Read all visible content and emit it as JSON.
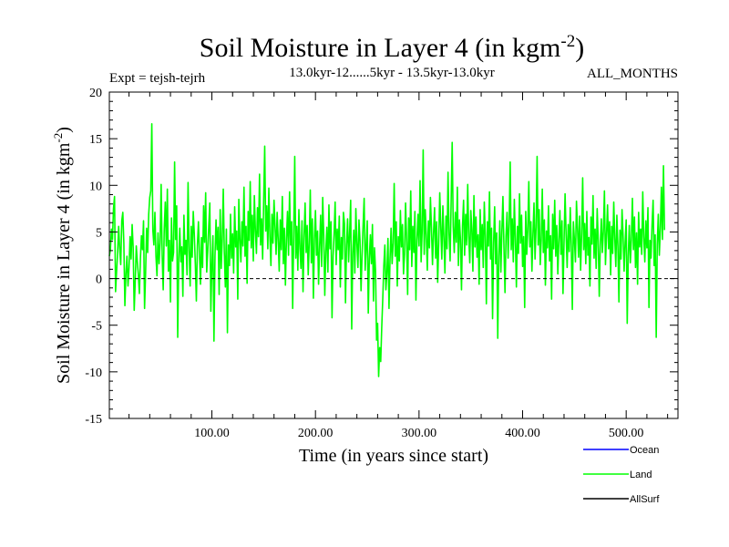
{
  "chart_data": {
    "type": "line",
    "title": "Soil Moisture in Layer 4 (in kgm",
    "title_sup": "-2",
    "title_close": ")",
    "subtitle_left": "Expt = tejsh-tejrh",
    "subtitle_center": "13.0kyr-12......5kyr - 13.5kyr-13.0kyr",
    "subtitle_right": "ALL_MONTHS",
    "xlabel": "Time (in years since start)",
    "ylabel": "Soil Moisture in Layer 4 (in kgm",
    "ylabel_sup": "-2",
    "ylabel_close": ")",
    "xlim": [
      1,
      550
    ],
    "ylim": [
      -15,
      20
    ],
    "x_ticks": [
      100,
      200,
      300,
      400,
      500
    ],
    "x_tick_labels": [
      "100.00",
      "200.00",
      "300.00",
      "400.00",
      "500.00"
    ],
    "y_ticks": [
      -15,
      -10,
      -5,
      0,
      5,
      10,
      15,
      20
    ],
    "y_tick_labels": [
      "-15",
      "-10",
      "-5",
      "0",
      "5",
      "10",
      "15",
      "20"
    ],
    "zero_line": true,
    "legend": [
      {
        "name": "Ocean",
        "color": "#0000ff"
      },
      {
        "name": "Land",
        "color": "#00ff00"
      },
      {
        "name": "AllSurf",
        "color": "#000000"
      }
    ],
    "legend_position": "below-right",
    "series": [
      {
        "name": "Land",
        "color": "#00ff00",
        "x_start": 1,
        "x_step": 1,
        "values": [
          2.4,
          3.1,
          5.3,
          4.2,
          7.5,
          8.8,
          -1.4,
          0.8,
          2.8,
          5.6,
          3.2,
          1.5,
          6.2,
          7.1,
          3.8,
          -2.9,
          0.5,
          2.4,
          -0.8,
          1.2,
          4.5,
          2.1,
          5.8,
          3.3,
          -3.4,
          -0.2,
          3.5,
          1.8,
          0.4,
          -1.6,
          2.2,
          4.6,
          3.1,
          6.2,
          -3.2,
          0.6,
          5.4,
          2.8,
          6.9,
          8.7,
          9.4,
          16.6,
          5.2,
          3.6,
          7.1,
          2.4,
          0.3,
          4.9,
          1.6,
          3.8,
          10.1,
          2.5,
          -1.2,
          5.3,
          8.2,
          3.5,
          9.6,
          0.8,
          4.1,
          -2.5,
          6.5,
          1.9,
          2.8,
          12.5,
          4.2,
          7.8,
          -6.3,
          2.1,
          5.4,
          1.8,
          3.4,
          -1.9,
          6.8,
          2.6,
          4.1,
          0.4,
          10.3,
          3.2,
          -0.8,
          5.6,
          2.3,
          7.2,
          4.8,
          1.6,
          -2.4,
          3.5,
          6.1,
          2.7,
          -0.6,
          4.4,
          1.2,
          7.8,
          3.9,
          9.2,
          0.7,
          2.9,
          5.7,
          8.1,
          -3.5,
          1.5,
          4.6,
          -6.7,
          2.4,
          6.3,
          3.1,
          5.5,
          -1.7,
          7.4,
          1.1,
          4.2,
          9.6,
          2.8,
          -0.9,
          5.3,
          -5.8,
          3.6,
          1.4,
          6.9,
          2.2,
          4.8,
          0.6,
          7.7,
          3.4,
          5.1,
          -2.2,
          8.5,
          4.3,
          1.8,
          6.1,
          3.5,
          9.8,
          2.4,
          5.6,
          -0.5,
          7.2,
          4.1,
          10.4,
          3.3,
          6.8,
          1.9,
          8.9,
          5.2,
          2.7,
          7.6,
          4.5,
          11.2,
          3.6,
          6.4,
          2.1,
          8.3,
          14.2,
          5.1,
          7.8,
          3.2,
          9.7,
          4.6,
          1.4,
          6.9,
          3.8,
          8.4,
          5.5,
          2.6,
          7.1,
          4.2,
          0.8,
          6.3,
          3.1,
          8.8,
          1.6,
          5.4,
          -0.7,
          4.3,
          7.2,
          2.5,
          9.3,
          3.6,
          6.1,
          -3.2,
          4.8,
          13.1,
          2.2,
          5.6,
          0.9,
          7.4,
          3.3,
          1.1,
          6.2,
          -1.4,
          4.5,
          8.1,
          2.8,
          5.7,
          0.4,
          3.9,
          9.5,
          1.7,
          6.4,
          -2.1,
          4.2,
          7.3,
          2.5,
          5.1,
          -0.6,
          3.4,
          6.8,
          1.3,
          8.7,
          4.6,
          -1.8,
          2.9,
          5.5,
          0.7,
          7.9,
          3.2,
          6.1,
          -4.2,
          2.4,
          4.8,
          8.2,
          1.5,
          5.3,
          3.1,
          6.7,
          -0.9,
          4.4,
          2.1,
          7.1,
          5.9,
          -2.6,
          3.6,
          6.4,
          1.8,
          4.9,
          8.4,
          -5.4,
          2.7,
          5.2,
          0.6,
          7.5,
          3.8,
          1.2,
          6.3,
          4.1,
          -1.3,
          2.5,
          5.7,
          8.6,
          0.9,
          3.4,
          6.2,
          -3.7,
          2.1,
          4.7,
          1.6,
          5.8,
          -2.4,
          3.3,
          0.8,
          -6.6,
          -4.8,
          -10.5,
          -7.4,
          -8.9,
          -5.2,
          -2.1,
          1.4,
          3.6,
          -1.2,
          0.6,
          4.3,
          -3.2,
          2.1,
          5.4,
          1.6,
          3.8,
          10.2,
          2.4,
          6.1,
          -0.8,
          4.5,
          1.9,
          7.3,
          3.4,
          5.8,
          0.5,
          2.6,
          8.1,
          4.2,
          -1.7,
          6.5,
          3.1,
          9.4,
          1.3,
          5.6,
          2.8,
          7.2,
          -2.3,
          4.1,
          6.9,
          3.5,
          10.5,
          1.8,
          5.1,
          13.8,
          2.6,
          7.4,
          4.7,
          0.9,
          6.2,
          3.3,
          8.7,
          5.4,
          1.5,
          4.9,
          7.6,
          2.2,
          6.1,
          -0.4,
          3.8,
          9.2,
          5.5,
          2.1,
          7.8,
          4.4,
          0.6,
          6.7,
          3.2,
          11.4,
          4.8,
          1.9,
          8.3,
          14.6,
          5.6,
          2.8,
          7.1,
          3.9,
          9.8,
          1.4,
          6.3,
          4.2,
          -1.2,
          5.7,
          8.4,
          2.5,
          6.9,
          3.6,
          10.1,
          4.5,
          1.7,
          7.3,
          5.2,
          0.8,
          8.9,
          3.4,
          6.6,
          2.3,
          4.7,
          -0.6,
          7.4,
          3.1,
          5.8,
          1.2,
          8.2,
          4.6,
          -2.7,
          6.1,
          3.5,
          9.3,
          2.1,
          5.4,
          -4.3,
          3.8,
          7.7,
          1.6,
          4.9,
          -6.4,
          2.4,
          6.2,
          0.7,
          5.1,
          8.8,
          3.3,
          -1.5,
          4.6,
          7.1,
          2.2,
          5.9,
          12.5,
          3.1,
          6.4,
          1.8,
          8.5,
          4.3,
          -0.9,
          5.6,
          2.7,
          9.1,
          3.8,
          6.8,
          1.3,
          4.5,
          -3.1,
          7.2,
          2.6,
          5.3,
          10.4,
          3.4,
          6.1,
          0.8,
          4.8,
          8.1,
          2.1,
          5.5,
          13.1,
          3.6,
          7.4,
          1.5,
          4.2,
          9.6,
          2.8,
          6.3,
          -0.7,
          5.1,
          3.3,
          7.8,
          1.9,
          4.6,
          -2.2,
          6.9,
          3.2,
          8.4,
          2.4,
          5.7,
          0.5,
          4.1,
          7.3,
          2.6,
          6.2,
          -1.6,
          3.9,
          9.1,
          4.7,
          1.2,
          5.8,
          2.9,
          7.6,
          3.5,
          -3.3,
          6.1,
          4.2,
          1.8,
          8.3,
          5.4,
          2.3,
          6.7,
          0.9,
          4.8,
          10.8,
          3.1,
          5.9,
          1.6,
          7.2,
          2.5,
          4.4,
          -0.8,
          6.6,
          3.7,
          8.9,
          2.2,
          5.3,
          1.1,
          7.5,
          4.1,
          -1.9,
          3.6,
          6.4,
          2.8,
          5.1,
          9.4,
          1.5,
          4.7,
          7.9,
          3.2,
          6.1,
          0.4,
          5.6,
          2.7,
          8.2,
          4.3,
          1.3,
          6.8,
          3.5,
          -2.5,
          5.2,
          2.1,
          7.4,
          4.6,
          0.8,
          3.9,
          6.3,
          -4.8,
          2.4,
          5.7,
          1.7,
          4.2,
          8.6,
          3.1,
          6.6,
          1.2,
          4.9,
          -0.6,
          7.1,
          3.4,
          5.3,
          2.6,
          9.3,
          4.5,
          1.8,
          6.2,
          3.3,
          7.6,
          -3.1,
          4.1,
          2.2,
          5.8,
          8.4,
          1.4,
          4.7,
          -6.3,
          3.6,
          6.9,
          2.5,
          5.4,
          9.8,
          4.2,
          12.1,
          5.2
        ]
      },
      {
        "name": "Ocean",
        "color": "#0000ff",
        "values": []
      },
      {
        "name": "AllSurf",
        "color": "#000000",
        "values": []
      }
    ]
  }
}
